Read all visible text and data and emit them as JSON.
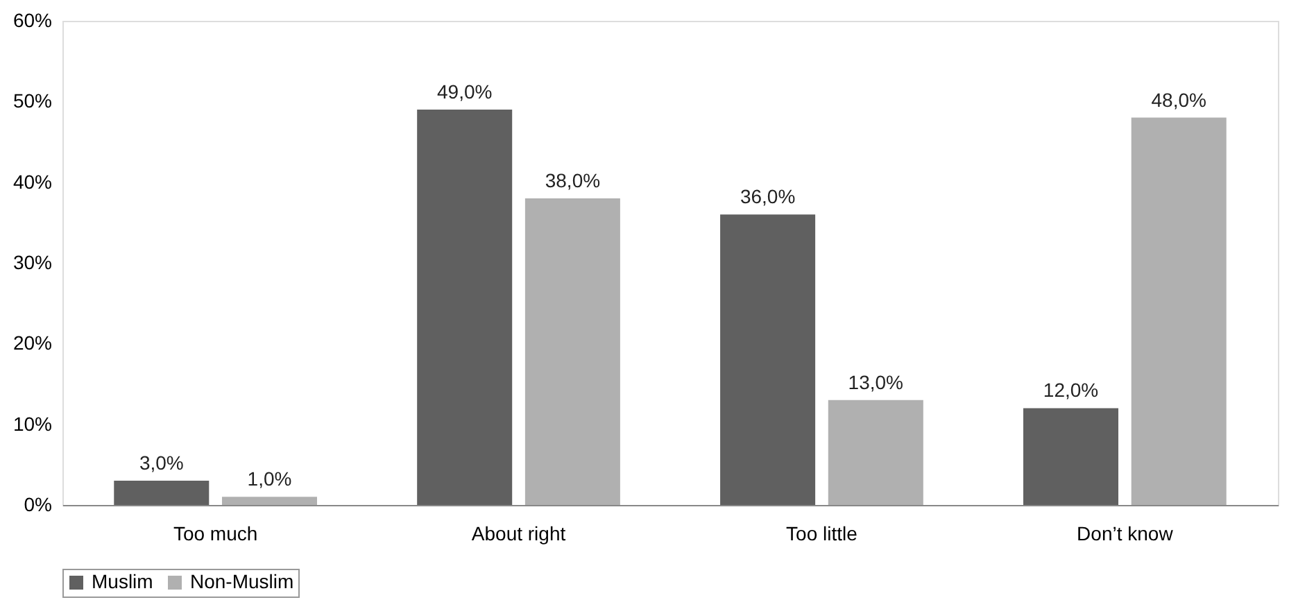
{
  "chart_data": {
    "type": "bar",
    "categories": [
      "Too much",
      "About right",
      "Too little",
      "Don’t know"
    ],
    "series": [
      {
        "name": "Muslim",
        "color": "#606060",
        "values": [
          3,
          49,
          36,
          12
        ],
        "value_labels": [
          "3,0%",
          "49,0%",
          "36,0%",
          "12,0%"
        ]
      },
      {
        "name": "Non-Muslim",
        "color": "#b0b0b0",
        "values": [
          1,
          38,
          13,
          48
        ],
        "value_labels": [
          "1,0%",
          "38,0%",
          "13,0%",
          "48,0%"
        ]
      }
    ],
    "ylim": [
      0,
      60
    ],
    "yticks": [
      {
        "value": 0,
        "label": "0%"
      },
      {
        "value": 10,
        "label": "10%"
      },
      {
        "value": 20,
        "label": "20%"
      },
      {
        "value": 30,
        "label": "30%"
      },
      {
        "value": 40,
        "label": "40%"
      },
      {
        "value": 50,
        "label": "50%"
      },
      {
        "value": 60,
        "label": "60%"
      }
    ],
    "grid": false,
    "legend": "bottom"
  }
}
